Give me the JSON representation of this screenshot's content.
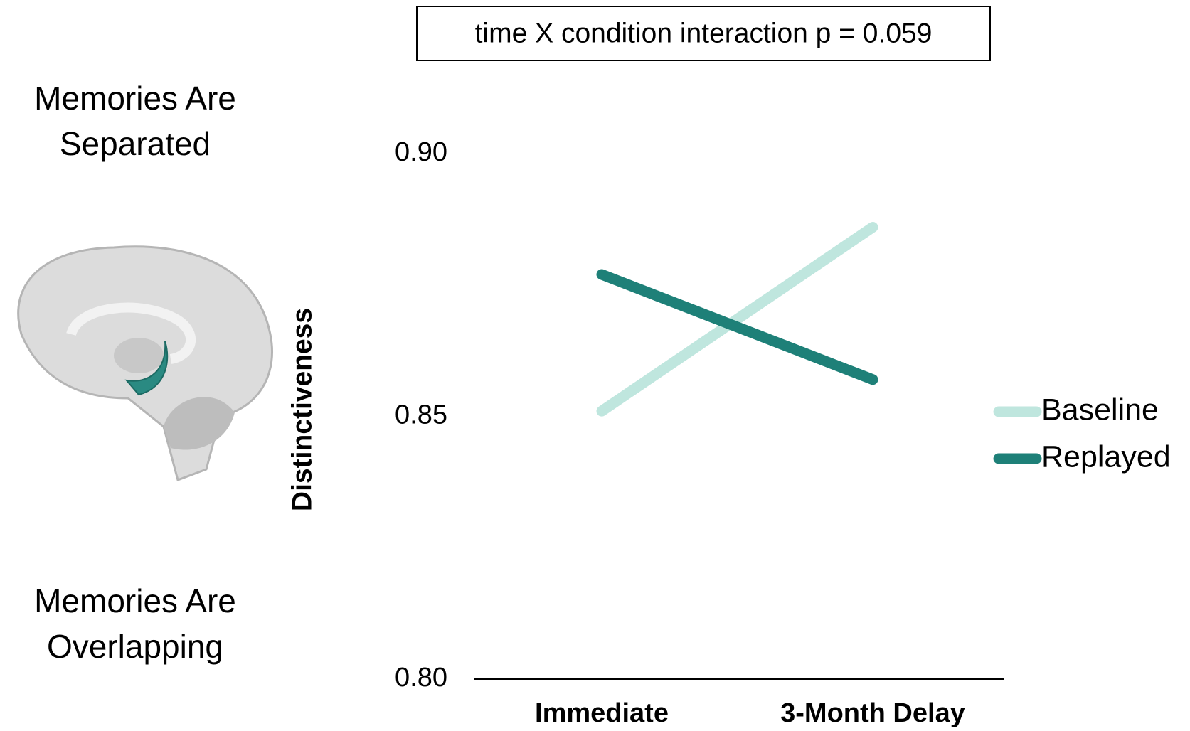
{
  "chart_data": {
    "type": "line",
    "annotation": "time X condition interaction p = 0.059",
    "top_label": [
      "Memories Are",
      "Separated"
    ],
    "bottom_label": [
      "Memories Are",
      "Overlapping"
    ],
    "y_label": "Distinctiveness",
    "categories": [
      "Immediate",
      "3-Month Delay"
    ],
    "series": [
      {
        "name": "Baseline",
        "color": "#bfe6de",
        "values": [
          0.851,
          0.886
        ]
      },
      {
        "name": "Replayed",
        "color": "#1e8078",
        "values": [
          0.877,
          0.857
        ]
      }
    ],
    "ylim": [
      0.8,
      0.9
    ],
    "yticks": [
      {
        "value": 0.8,
        "label": "0.80"
      },
      {
        "value": 0.85,
        "label": "0.85"
      },
      {
        "value": 0.9,
        "label": "0.90"
      }
    ],
    "legend": "right"
  }
}
